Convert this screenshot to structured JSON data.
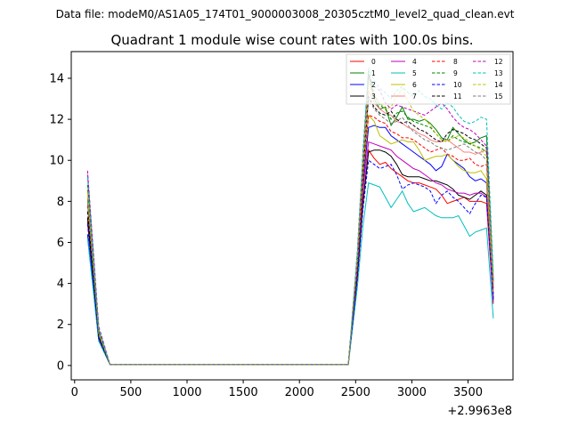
{
  "figure": {
    "suptitle": "Data file: modeM0/AS1A05_174T01_9000003008_20305cztM0_level2_quad_clean.evt",
    "offset_label": "+2.9963e8"
  },
  "chart_data": {
    "type": "line",
    "title": "Quadrant 1 module wise count rates with 100.0s bins.",
    "xlabel": "",
    "ylabel": "",
    "xlim": [
      -30,
      3900
    ],
    "ylim": [
      -0.7,
      15.3
    ],
    "xticks": [
      0,
      500,
      1000,
      1500,
      2000,
      2500,
      3000,
      3500
    ],
    "yticks": [
      0,
      2,
      4,
      6,
      8,
      10,
      12,
      14
    ],
    "x": [
      115,
      215,
      315,
      415,
      515,
      615,
      715,
      815,
      915,
      1015,
      1115,
      1215,
      1315,
      1415,
      1515,
      1615,
      1715,
      1815,
      1915,
      2015,
      2115,
      2215,
      2315,
      2435,
      2515,
      2565,
      2615,
      2665,
      2715,
      2765,
      2815,
      2865,
      2915,
      2965,
      3015,
      3065,
      3115,
      3165,
      3215,
      3265,
      3315,
      3365,
      3415,
      3465,
      3515,
      3565,
      3615,
      3665,
      3725
    ],
    "legend_position": "top-right",
    "series": [
      {
        "name": "0",
        "color": "#ff0000",
        "dash": "solid",
        "values": [
          7.0,
          1.3,
          0.05,
          0.05,
          0.05,
          0.05,
          0.05,
          0.05,
          0.05,
          0.05,
          0.05,
          0.05,
          0.05,
          0.05,
          0.05,
          0.05,
          0.05,
          0.05,
          0.05,
          0.05,
          0.05,
          0.05,
          0.05,
          0.05,
          4.3,
          7.8,
          10.5,
          10.1,
          9.8,
          9.9,
          9.6,
          9.4,
          9.2,
          9.0,
          8.9,
          8.9,
          8.8,
          8.7,
          8.6,
          8.3,
          7.9,
          8.0,
          8.1,
          8.2,
          8.0,
          8.0,
          8.0,
          7.9,
          3.0
        ]
      },
      {
        "name": "1",
        "color": "#008000",
        "dash": "solid",
        "values": [
          8.0,
          1.6,
          0.05,
          0.05,
          0.05,
          0.05,
          0.05,
          0.05,
          0.05,
          0.05,
          0.05,
          0.05,
          0.05,
          0.05,
          0.05,
          0.05,
          0.05,
          0.05,
          0.05,
          0.05,
          0.05,
          0.05,
          0.05,
          0.05,
          5.0,
          9.5,
          14.2,
          13.0,
          12.5,
          12.6,
          11.7,
          12.1,
          12.6,
          12.0,
          12.0,
          11.9,
          12.0,
          11.8,
          11.5,
          11.1,
          11.0,
          11.6,
          11.3,
          11.0,
          10.8,
          10.9,
          11.1,
          11.2,
          4.2
        ]
      },
      {
        "name": "2",
        "color": "#0000ff",
        "dash": "solid",
        "values": [
          6.4,
          1.2,
          0.05,
          0.05,
          0.05,
          0.05,
          0.05,
          0.05,
          0.05,
          0.05,
          0.05,
          0.05,
          0.05,
          0.05,
          0.05,
          0.05,
          0.05,
          0.05,
          0.05,
          0.05,
          0.05,
          0.05,
          0.05,
          0.05,
          4.6,
          8.8,
          11.6,
          11.7,
          11.6,
          11.6,
          11.2,
          11.0,
          10.8,
          10.6,
          10.4,
          10.2,
          10.0,
          9.8,
          9.5,
          9.7,
          10.3,
          10.0,
          9.8,
          9.6,
          9.2,
          9.0,
          9.1,
          8.9,
          3.5
        ]
      },
      {
        "name": "3",
        "color": "#000000",
        "dash": "solid",
        "values": [
          7.2,
          1.4,
          0.05,
          0.05,
          0.05,
          0.05,
          0.05,
          0.05,
          0.05,
          0.05,
          0.05,
          0.05,
          0.05,
          0.05,
          0.05,
          0.05,
          0.05,
          0.05,
          0.05,
          0.05,
          0.05,
          0.05,
          0.05,
          0.05,
          4.4,
          8.0,
          10.4,
          10.5,
          10.5,
          10.4,
          10.2,
          9.8,
          9.3,
          9.2,
          9.2,
          9.2,
          9.1,
          9.0,
          9.0,
          8.9,
          8.8,
          8.6,
          8.3,
          8.2,
          8.1,
          8.3,
          8.5,
          8.3,
          3.3
        ]
      },
      {
        "name": "4",
        "color": "#bf00bf",
        "dash": "solid",
        "values": [
          9.3,
          1.7,
          0.05,
          0.05,
          0.05,
          0.05,
          0.05,
          0.05,
          0.05,
          0.05,
          0.05,
          0.05,
          0.05,
          0.05,
          0.05,
          0.05,
          0.05,
          0.05,
          0.05,
          0.05,
          0.05,
          0.05,
          0.05,
          0.05,
          4.8,
          8.5,
          10.9,
          10.8,
          10.7,
          10.6,
          10.5,
          10.2,
          10.0,
          9.8,
          9.6,
          9.5,
          9.3,
          9.1,
          8.9,
          8.8,
          8.6,
          8.5,
          8.4,
          8.4,
          8.3,
          8.4,
          8.4,
          8.2,
          3.1
        ]
      },
      {
        "name": "5",
        "color": "#00bfbf",
        "dash": "solid",
        "values": [
          6.2,
          1.2,
          0.05,
          0.05,
          0.05,
          0.05,
          0.05,
          0.05,
          0.05,
          0.05,
          0.05,
          0.05,
          0.05,
          0.05,
          0.05,
          0.05,
          0.05,
          0.05,
          0.05,
          0.05,
          0.05,
          0.05,
          0.05,
          0.05,
          3.8,
          6.8,
          8.9,
          8.8,
          8.7,
          8.2,
          7.7,
          8.1,
          8.5,
          7.9,
          7.5,
          7.6,
          7.7,
          7.5,
          7.3,
          7.2,
          7.2,
          7.2,
          7.3,
          6.8,
          6.3,
          6.5,
          6.6,
          6.7,
          2.3
        ]
      },
      {
        "name": "6",
        "color": "#bfbf00",
        "dash": "solid",
        "values": [
          8.2,
          1.5,
          0.05,
          0.05,
          0.05,
          0.05,
          0.05,
          0.05,
          0.05,
          0.05,
          0.05,
          0.05,
          0.05,
          0.05,
          0.05,
          0.05,
          0.05,
          0.05,
          0.05,
          0.05,
          0.05,
          0.05,
          0.05,
          0.05,
          4.9,
          9.1,
          12.2,
          11.9,
          11.2,
          11.0,
          10.8,
          10.9,
          11.0,
          10.9,
          10.9,
          10.5,
          10.0,
          10.1,
          10.2,
          10.2,
          10.3,
          10.0,
          9.7,
          9.5,
          9.4,
          9.4,
          9.5,
          9.1,
          3.6
        ]
      },
      {
        "name": "7",
        "color": "#ff7f7f",
        "dash": "solid",
        "values": [
          8.6,
          1.6,
          0.05,
          0.05,
          0.05,
          0.05,
          0.05,
          0.05,
          0.05,
          0.05,
          0.05,
          0.05,
          0.05,
          0.05,
          0.05,
          0.05,
          0.05,
          0.05,
          0.05,
          0.05,
          0.05,
          0.05,
          0.05,
          0.05,
          5.1,
          9.6,
          13.4,
          12.8,
          12.5,
          12.3,
          12.2,
          11.9,
          11.8,
          11.6,
          11.5,
          11.3,
          11.2,
          11.0,
          10.9,
          10.9,
          11.0,
          10.8,
          10.6,
          10.4,
          10.4,
          10.3,
          10.4,
          10.5,
          3.9
        ]
      },
      {
        "name": "8",
        "color": "#ff0000",
        "dash": "dashed",
        "values": [
          7.8,
          1.5,
          0.05,
          0.05,
          0.05,
          0.05,
          0.05,
          0.05,
          0.05,
          0.05,
          0.05,
          0.05,
          0.05,
          0.05,
          0.05,
          0.05,
          0.05,
          0.05,
          0.05,
          0.05,
          0.05,
          0.05,
          0.05,
          0.05,
          4.7,
          9.0,
          12.2,
          12.1,
          11.9,
          11.8,
          11.4,
          11.3,
          11.1,
          11.1,
          11.0,
          10.8,
          10.6,
          10.4,
          10.5,
          10.6,
          10.3,
          10.2,
          10.0,
          10.0,
          10.1,
          9.8,
          9.7,
          9.8,
          3.7
        ]
      },
      {
        "name": "9",
        "color": "#008000",
        "dash": "dashed",
        "values": [
          8.8,
          1.7,
          0.05,
          0.05,
          0.05,
          0.05,
          0.05,
          0.05,
          0.05,
          0.05,
          0.05,
          0.05,
          0.05,
          0.05,
          0.05,
          0.05,
          0.05,
          0.05,
          0.05,
          0.05,
          0.05,
          0.05,
          0.05,
          0.05,
          5.3,
          10.0,
          14.4,
          13.2,
          12.7,
          12.5,
          12.0,
          12.3,
          12.4,
          12.1,
          11.9,
          11.8,
          11.7,
          11.6,
          11.3,
          11.0,
          10.9,
          11.2,
          11.0,
          10.9,
          10.8,
          10.7,
          10.6,
          10.4,
          3.8
        ]
      },
      {
        "name": "10",
        "color": "#0000ff",
        "dash": "dashed",
        "values": [
          6.9,
          1.3,
          0.05,
          0.05,
          0.05,
          0.05,
          0.05,
          0.05,
          0.05,
          0.05,
          0.05,
          0.05,
          0.05,
          0.05,
          0.05,
          0.05,
          0.05,
          0.05,
          0.05,
          0.05,
          0.05,
          0.05,
          0.05,
          0.05,
          4.2,
          7.6,
          10.0,
          9.8,
          9.6,
          9.7,
          9.8,
          9.3,
          8.6,
          8.8,
          8.9,
          8.8,
          8.7,
          8.5,
          7.9,
          8.3,
          8.5,
          8.2,
          8.0,
          7.7,
          7.4,
          7.9,
          8.3,
          8.2,
          3.2
        ]
      },
      {
        "name": "11",
        "color": "#000000",
        "dash": "dashed",
        "values": [
          7.5,
          1.4,
          0.05,
          0.05,
          0.05,
          0.05,
          0.05,
          0.05,
          0.05,
          0.05,
          0.05,
          0.05,
          0.05,
          0.05,
          0.05,
          0.05,
          0.05,
          0.05,
          0.05,
          0.05,
          0.05,
          0.05,
          0.05,
          0.05,
          5.0,
          9.3,
          13.1,
          12.6,
          12.3,
          12.2,
          12.4,
          12.0,
          11.8,
          11.9,
          11.7,
          11.5,
          11.4,
          11.2,
          11.0,
          10.9,
          11.3,
          11.5,
          11.4,
          11.3,
          11.1,
          11.0,
          10.8,
          10.6,
          4.0
        ]
      },
      {
        "name": "12",
        "color": "#bf00bf",
        "dash": "dashed",
        "values": [
          9.5,
          1.9,
          0.05,
          0.05,
          0.05,
          0.05,
          0.05,
          0.05,
          0.05,
          0.05,
          0.05,
          0.05,
          0.05,
          0.05,
          0.05,
          0.05,
          0.05,
          0.05,
          0.05,
          0.05,
          0.05,
          0.05,
          0.05,
          0.05,
          5.4,
          10.2,
          14.1,
          13.6,
          13.4,
          12.8,
          12.5,
          12.7,
          12.6,
          12.5,
          12.4,
          12.3,
          12.2,
          12.4,
          12.6,
          12.8,
          12.5,
          12.1,
          11.8,
          11.6,
          11.5,
          11.3,
          11.0,
          10.7,
          4.1
        ]
      },
      {
        "name": "13",
        "color": "#00bfbf",
        "dash": "dashed",
        "values": [
          9.2,
          1.8,
          0.05,
          0.05,
          0.05,
          0.05,
          0.05,
          0.05,
          0.05,
          0.05,
          0.05,
          0.05,
          0.05,
          0.05,
          0.05,
          0.05,
          0.05,
          0.05,
          0.05,
          0.05,
          0.05,
          0.05,
          0.05,
          0.05,
          5.6,
          10.5,
          14.5,
          13.9,
          13.5,
          13.3,
          13.0,
          13.4,
          13.6,
          13.3,
          13.1,
          13.4,
          13.1,
          13.0,
          12.7,
          12.5,
          12.8,
          12.6,
          12.2,
          11.9,
          11.8,
          11.9,
          12.1,
          12.0,
          4.5
        ]
      },
      {
        "name": "14",
        "color": "#bfbf00",
        "dash": "dashed",
        "values": [
          8.4,
          1.6,
          0.05,
          0.05,
          0.05,
          0.05,
          0.05,
          0.05,
          0.05,
          0.05,
          0.05,
          0.05,
          0.05,
          0.05,
          0.05,
          0.05,
          0.05,
          0.05,
          0.05,
          0.05,
          0.05,
          0.05,
          0.05,
          0.05,
          5.2,
          9.9,
          13.8,
          13.1,
          12.8,
          12.5,
          12.6,
          13.1,
          13.5,
          12.9,
          12.4,
          12.2,
          12.0,
          11.7,
          11.3,
          11.0,
          10.9,
          11.1,
          11.2,
          11.1,
          10.9,
          10.7,
          10.5,
          10.2,
          3.9
        ]
      },
      {
        "name": "15",
        "color": "#7f7f7f",
        "dash": "dashed",
        "values": [
          8.1,
          1.5,
          0.05,
          0.05,
          0.05,
          0.05,
          0.05,
          0.05,
          0.05,
          0.05,
          0.05,
          0.05,
          0.05,
          0.05,
          0.05,
          0.05,
          0.05,
          0.05,
          0.05,
          0.05,
          0.05,
          0.05,
          0.05,
          0.05,
          5.0,
          9.4,
          13.0,
          12.5,
          12.2,
          12.0,
          11.8,
          11.9,
          12.1,
          11.7,
          11.4,
          11.2,
          11.0,
          10.9,
          10.7,
          10.6,
          10.5,
          10.6,
          10.7,
          10.8,
          10.6,
          10.4,
          10.3,
          10.0,
          3.8
        ]
      }
    ]
  }
}
